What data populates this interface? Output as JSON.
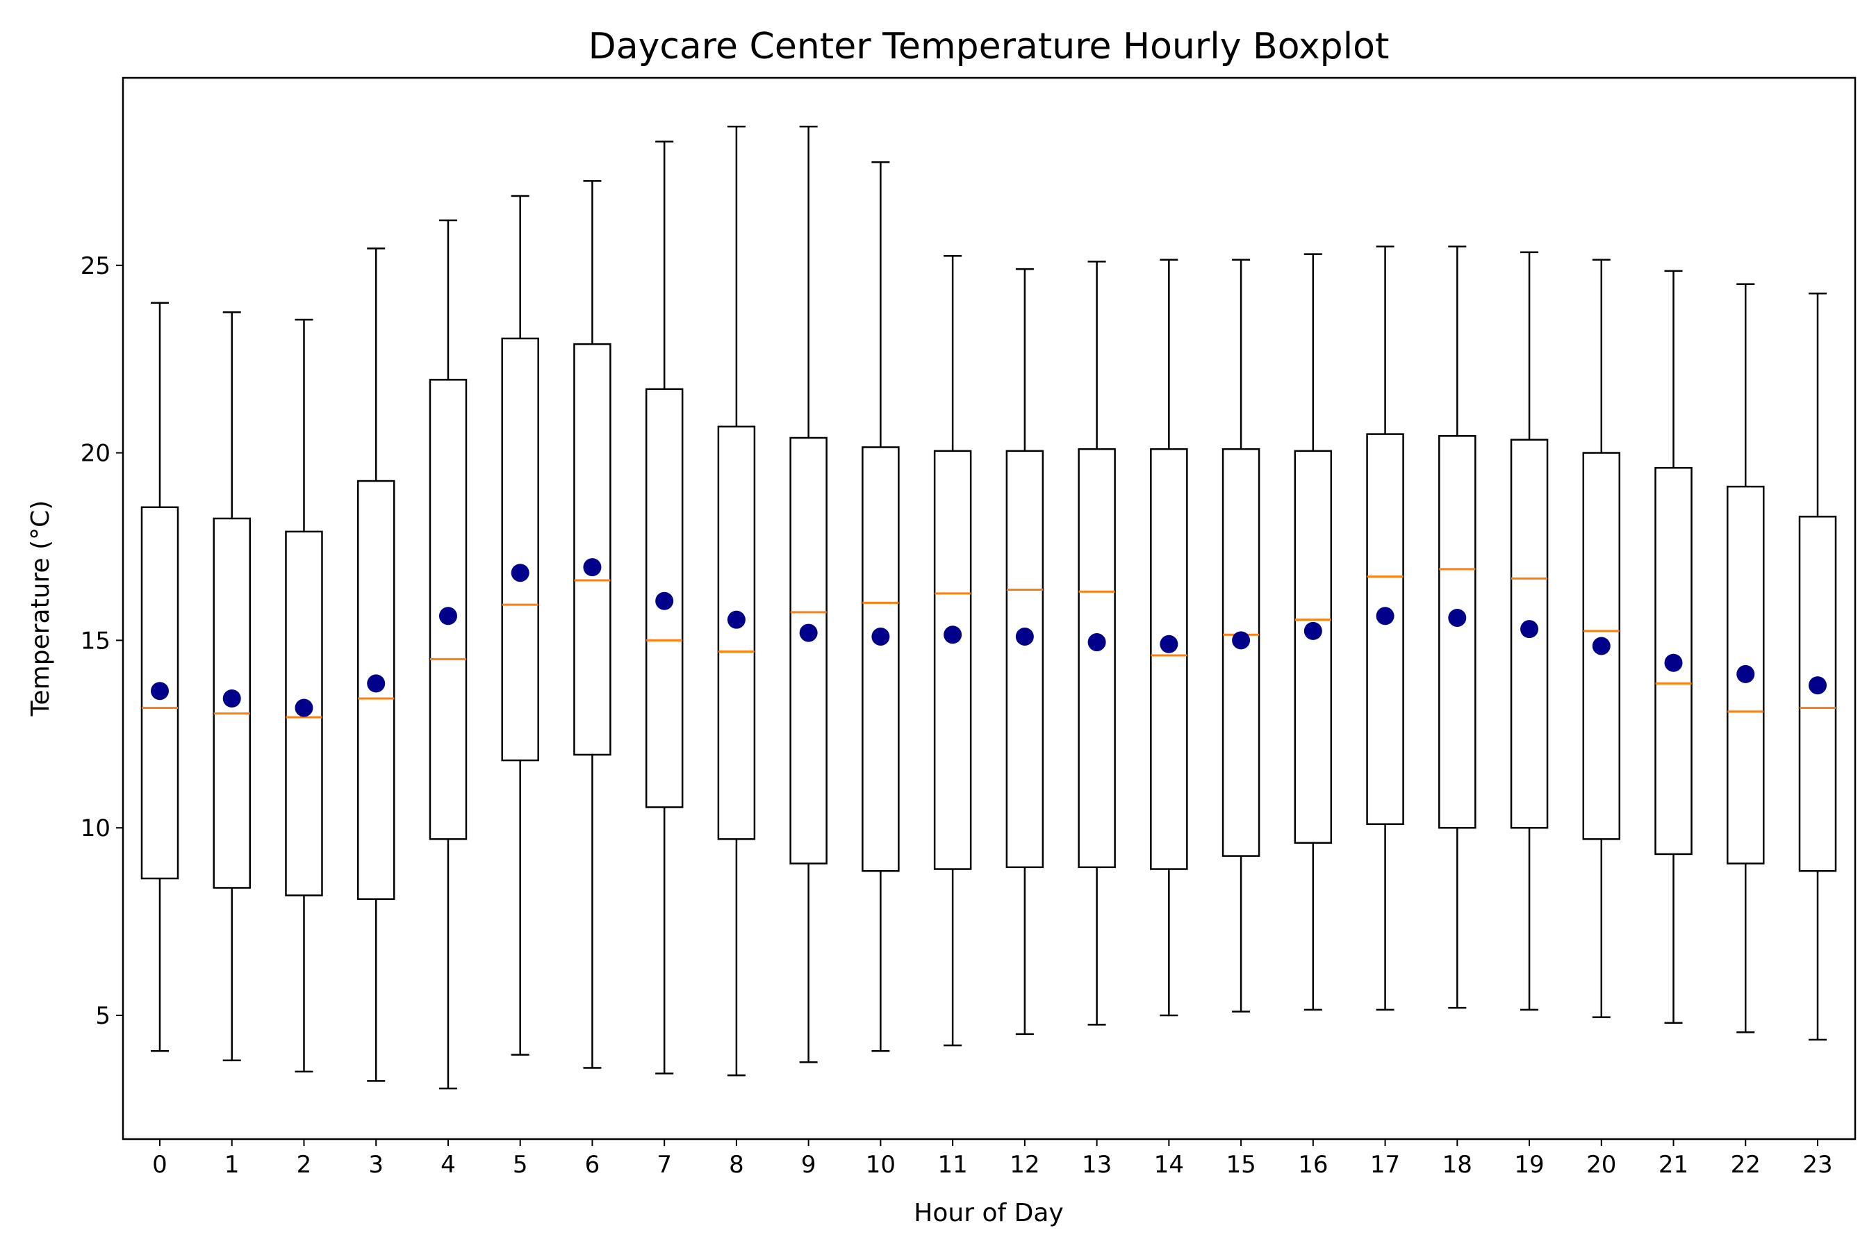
{
  "chart_data": {
    "type": "boxplot",
    "title": "Daycare Center Temperature Hourly Boxplot",
    "xlabel": "Hour of Day",
    "ylabel": "Temperature (°C)",
    "categories": [
      "0",
      "1",
      "2",
      "3",
      "4",
      "5",
      "6",
      "7",
      "8",
      "9",
      "10",
      "11",
      "12",
      "13",
      "14",
      "15",
      "16",
      "17",
      "18",
      "19",
      "20",
      "21",
      "22",
      "23"
    ],
    "ylim": [
      1.7,
      30.0
    ],
    "yticks": [
      5,
      10,
      15,
      20,
      25
    ],
    "whisker_low": [
      4.05,
      3.8,
      3.5,
      3.25,
      3.05,
      3.95,
      3.6,
      3.45,
      3.4,
      3.75,
      4.05,
      4.2,
      4.5,
      4.75,
      5.0,
      5.1,
      5.15,
      5.15,
      5.2,
      5.15,
      4.95,
      4.8,
      4.55,
      4.35
    ],
    "q1": [
      8.65,
      8.4,
      8.2,
      8.1,
      9.7,
      11.8,
      11.95,
      10.55,
      9.7,
      9.05,
      8.85,
      8.9,
      8.95,
      8.95,
      8.9,
      9.25,
      9.6,
      10.1,
      10.0,
      10.0,
      9.7,
      9.3,
      9.05,
      8.85
    ],
    "median": [
      13.2,
      13.05,
      12.95,
      13.45,
      14.5,
      15.95,
      16.6,
      15.0,
      14.7,
      15.75,
      16.0,
      16.25,
      16.35,
      16.3,
      14.6,
      15.15,
      15.55,
      16.7,
      16.9,
      16.65,
      15.25,
      13.85,
      13.1,
      13.2
    ],
    "mean": [
      13.65,
      13.45,
      13.2,
      13.85,
      15.65,
      16.8,
      16.95,
      16.05,
      15.55,
      15.2,
      15.1,
      15.15,
      15.1,
      14.95,
      14.9,
      15.0,
      15.25,
      15.65,
      15.6,
      15.3,
      14.85,
      14.4,
      14.1,
      13.8
    ],
    "q3": [
      18.55,
      18.25,
      17.9,
      19.25,
      21.95,
      23.05,
      22.9,
      21.7,
      20.7,
      20.4,
      20.15,
      20.05,
      20.05,
      20.1,
      20.1,
      20.1,
      20.05,
      20.5,
      20.45,
      20.35,
      20.0,
      19.6,
      19.1,
      18.3
    ],
    "whisker_high": [
      24.0,
      23.75,
      23.55,
      25.45,
      26.2,
      26.85,
      27.25,
      28.3,
      28.7,
      28.7,
      27.75,
      25.25,
      24.9,
      25.1,
      25.15,
      25.15,
      25.3,
      25.5,
      25.5,
      25.35,
      25.15,
      24.85,
      24.5,
      24.25
    ],
    "colors": {
      "box": "#000000",
      "median": "#ff7f0e",
      "mean": "#00008b",
      "background": "#ffffff"
    },
    "grid": false,
    "legend": "none"
  }
}
